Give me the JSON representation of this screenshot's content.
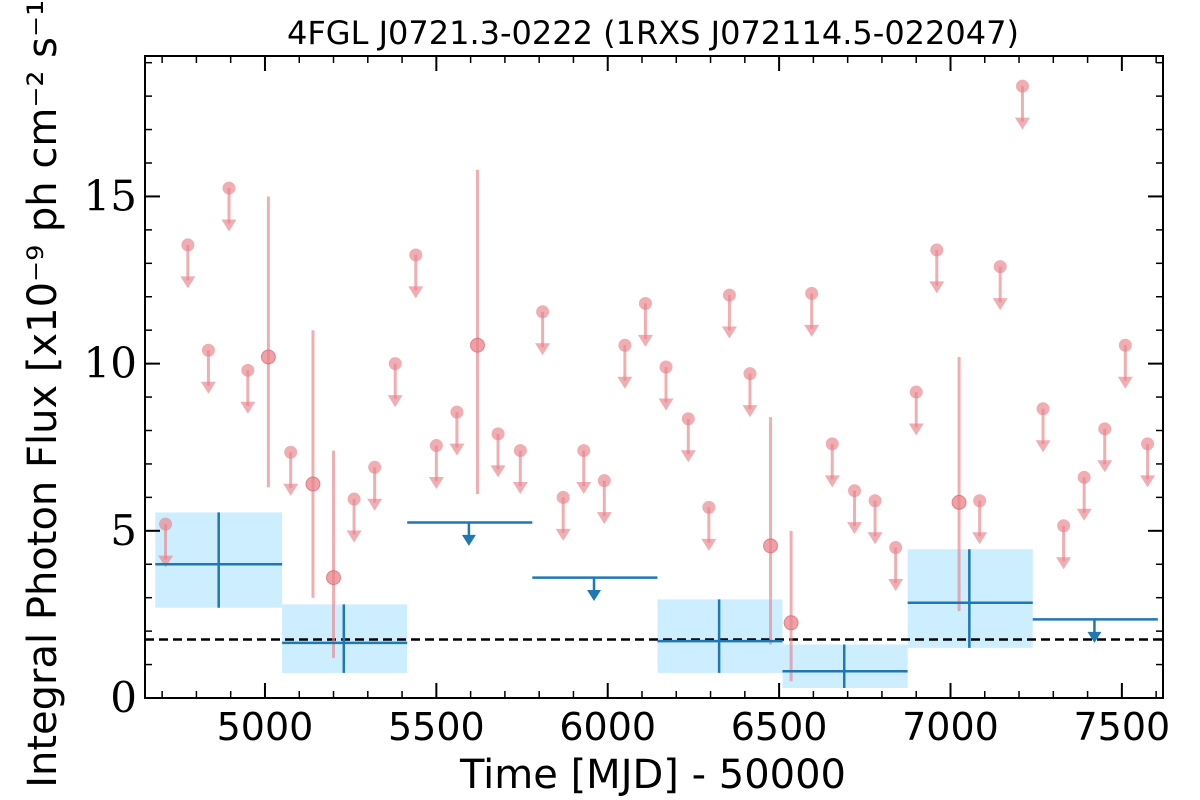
{
  "chart_data": {
    "type": "scatter",
    "title": "4FGL J0721.3-0222 (1RXS J072114.5-022047)",
    "xlabel": "Time [MJD] - 50000",
    "ylabel": "Integral Photon Flux [x10⁻⁹ ph cm⁻² s⁻¹]",
    "xlim": [
      4650,
      7620
    ],
    "ylim": [
      0,
      19.2
    ],
    "x_ticks": [
      5000,
      5500,
      6000,
      6500,
      7000,
      7500
    ],
    "y_ticks": [
      0,
      5,
      10,
      15
    ],
    "grid": false,
    "reference_line": {
      "y": 1.75,
      "style": "dashed",
      "color": "#000000"
    },
    "colors": {
      "fine_series": "#e8838a",
      "coarse_series": "#1f77b4",
      "coarse_band": "#cdeeff"
    },
    "series": [
      {
        "key": "fine",
        "points": [
          {
            "x": 4710,
            "y": 5.2,
            "type": "ul"
          },
          {
            "x": 4775,
            "y": 13.55,
            "type": "ul"
          },
          {
            "x": 4835,
            "y": 10.4,
            "type": "ul"
          },
          {
            "x": 4895,
            "y": 15.25,
            "type": "ul"
          },
          {
            "x": 4950,
            "y": 9.8,
            "type": "ul"
          },
          {
            "x": 5010,
            "y": 10.2,
            "type": "det",
            "lo": 6.3,
            "hi": 15.0
          },
          {
            "x": 5075,
            "y": 7.35,
            "type": "ul"
          },
          {
            "x": 5140,
            "y": 6.4,
            "type": "det",
            "lo": 3.0,
            "hi": 11.0
          },
          {
            "x": 5200,
            "y": 3.6,
            "type": "det",
            "lo": 1.2,
            "hi": 7.4
          },
          {
            "x": 5260,
            "y": 5.95,
            "type": "ul"
          },
          {
            "x": 5320,
            "y": 6.9,
            "type": "ul"
          },
          {
            "x": 5380,
            "y": 10.0,
            "type": "ul"
          },
          {
            "x": 5440,
            "y": 13.25,
            "type": "ul"
          },
          {
            "x": 5500,
            "y": 7.55,
            "type": "ul"
          },
          {
            "x": 5560,
            "y": 8.55,
            "type": "ul"
          },
          {
            "x": 5620,
            "y": 10.55,
            "type": "det",
            "lo": 6.1,
            "hi": 15.8
          },
          {
            "x": 5680,
            "y": 7.9,
            "type": "ul"
          },
          {
            "x": 5745,
            "y": 7.4,
            "type": "ul"
          },
          {
            "x": 5810,
            "y": 11.55,
            "type": "ul"
          },
          {
            "x": 5870,
            "y": 6.0,
            "type": "ul"
          },
          {
            "x": 5930,
            "y": 7.4,
            "type": "ul"
          },
          {
            "x": 5990,
            "y": 6.5,
            "type": "ul"
          },
          {
            "x": 6050,
            "y": 10.55,
            "type": "ul"
          },
          {
            "x": 6110,
            "y": 11.8,
            "type": "ul"
          },
          {
            "x": 6170,
            "y": 9.9,
            "type": "ul"
          },
          {
            "x": 6235,
            "y": 8.35,
            "type": "ul"
          },
          {
            "x": 6295,
            "y": 5.7,
            "type": "ul"
          },
          {
            "x": 6355,
            "y": 12.05,
            "type": "ul"
          },
          {
            "x": 6415,
            "y": 9.7,
            "type": "ul"
          },
          {
            "x": 6475,
            "y": 4.55,
            "type": "det",
            "lo": 1.6,
            "hi": 8.4
          },
          {
            "x": 6535,
            "y": 2.25,
            "type": "det",
            "lo": 0.5,
            "hi": 5.0
          },
          {
            "x": 6595,
            "y": 12.1,
            "type": "ul"
          },
          {
            "x": 6655,
            "y": 7.6,
            "type": "ul"
          },
          {
            "x": 6720,
            "y": 6.2,
            "type": "ul"
          },
          {
            "x": 6780,
            "y": 5.9,
            "type": "ul"
          },
          {
            "x": 6840,
            "y": 4.5,
            "type": "ul"
          },
          {
            "x": 6900,
            "y": 9.15,
            "type": "ul"
          },
          {
            "x": 6960,
            "y": 13.4,
            "type": "ul"
          },
          {
            "x": 7025,
            "y": 5.85,
            "type": "det",
            "lo": 2.6,
            "hi": 10.2
          },
          {
            "x": 7085,
            "y": 5.9,
            "type": "ul"
          },
          {
            "x": 7145,
            "y": 12.9,
            "type": "ul"
          },
          {
            "x": 7210,
            "y": 18.3,
            "type": "ul"
          },
          {
            "x": 7270,
            "y": 8.65,
            "type": "ul"
          },
          {
            "x": 7330,
            "y": 5.15,
            "type": "ul"
          },
          {
            "x": 7390,
            "y": 6.6,
            "type": "ul"
          },
          {
            "x": 7450,
            "y": 8.05,
            "type": "ul"
          },
          {
            "x": 7510,
            "y": 10.55,
            "type": "ul"
          },
          {
            "x": 7575,
            "y": 7.6,
            "type": "ul"
          }
        ]
      },
      {
        "key": "coarse",
        "points": [
          {
            "x": 4865,
            "x_lo": 4680,
            "x_hi": 5050,
            "y": 4.0,
            "type": "det",
            "lo": 2.7,
            "hi": 5.55
          },
          {
            "x": 5230,
            "x_lo": 5050,
            "x_hi": 5415,
            "y": 1.65,
            "type": "det",
            "lo": 0.75,
            "hi": 2.8
          },
          {
            "x": 5595,
            "x_lo": 5415,
            "x_hi": 5780,
            "y": 5.25,
            "type": "ul"
          },
          {
            "x": 5960,
            "x_lo": 5780,
            "x_hi": 6145,
            "y": 3.6,
            "type": "ul"
          },
          {
            "x": 6325,
            "x_lo": 6145,
            "x_hi": 6510,
            "y": 1.7,
            "type": "det",
            "lo": 0.75,
            "hi": 2.95
          },
          {
            "x": 6690,
            "x_lo": 6510,
            "x_hi": 6875,
            "y": 0.8,
            "type": "det",
            "lo": 0.3,
            "hi": 1.6
          },
          {
            "x": 7055,
            "x_lo": 6875,
            "x_hi": 7240,
            "y": 2.85,
            "type": "det",
            "lo": 1.5,
            "hi": 4.45
          },
          {
            "x": 7420,
            "x_lo": 7240,
            "x_hi": 7605,
            "y": 2.35,
            "type": "ul"
          }
        ]
      }
    ]
  }
}
